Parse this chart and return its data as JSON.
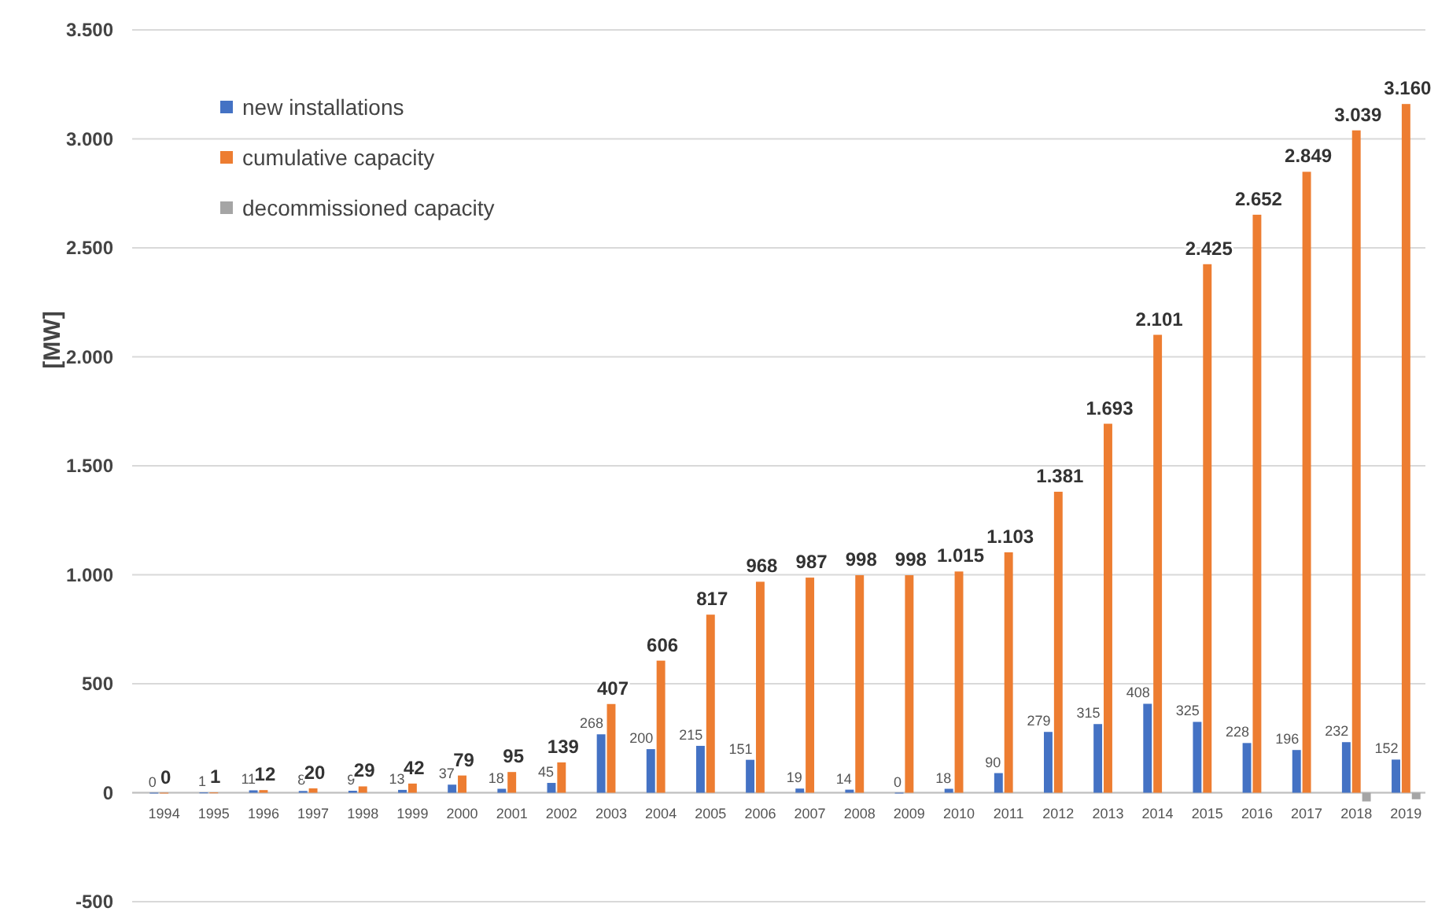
{
  "chart_data": {
    "type": "bar",
    "ylabel": "[MW]",
    "categories": [
      "1994",
      "1995",
      "1996",
      "1997",
      "1998",
      "1999",
      "2000",
      "2001",
      "2002",
      "2003",
      "2004",
      "2005",
      "2006",
      "2007",
      "2008",
      "2009",
      "2010",
      "2011",
      "2012",
      "2013",
      "2014",
      "2015",
      "2016",
      "2017",
      "2018",
      "2019"
    ],
    "series": [
      {
        "name": "new installations",
        "color": "#4472c4",
        "values": [
          0,
          1,
          11,
          8,
          9,
          13,
          37,
          18,
          45,
          268,
          200,
          215,
          151,
          19,
          14,
          0,
          18,
          90,
          279,
          315,
          408,
          325,
          228,
          196,
          232,
          152
        ],
        "value_labels": [
          "0",
          "1",
          "11",
          "8",
          "9",
          "13",
          "37",
          "18",
          "45",
          "268",
          "200",
          "215",
          "151",
          "19",
          "14",
          "0",
          "18",
          "90",
          "279",
          "315",
          "408",
          "325",
          "228",
          "196",
          "232",
          "152"
        ]
      },
      {
        "name": "cumulative capacity",
        "color": "#ed7d31",
        "values": [
          0,
          1,
          12,
          20,
          29,
          42,
          79,
          95,
          139,
          407,
          606,
          817,
          968,
          987,
          998,
          998,
          1015,
          1103,
          1381,
          1693,
          2101,
          2425,
          2652,
          2849,
          3039,
          3160
        ],
        "value_labels": [
          "0",
          "1",
          "12",
          "20",
          "29",
          "42",
          "79",
          "95",
          "139",
          "407",
          "606",
          "817",
          "968",
          "987",
          "998",
          "998",
          "1.015",
          "1.103",
          "1.381",
          "1.693",
          "2.101",
          "2.425",
          "2.652",
          "2.849",
          "3.039",
          "3.160"
        ]
      },
      {
        "name": "decommissioned capacity",
        "color": "#a5a5a5",
        "values": [
          null,
          null,
          null,
          null,
          null,
          null,
          null,
          null,
          null,
          null,
          null,
          null,
          null,
          null,
          null,
          null,
          null,
          null,
          null,
          null,
          null,
          null,
          null,
          null,
          -40,
          -30
        ]
      }
    ],
    "ylim": [
      -500,
      3500
    ],
    "yticks": [
      {
        "value": -500,
        "label": "-500"
      },
      0,
      500,
      {
        "value": 1000,
        "label": "1.000"
      },
      {
        "value": 1500,
        "label": "1.500"
      },
      {
        "value": 2000,
        "label": "2.000"
      },
      {
        "value": 2500,
        "label": "2.500"
      },
      {
        "value": 3000,
        "label": "3.000"
      },
      {
        "value": 3500,
        "label": "3.500"
      }
    ],
    "grid": "y",
    "legend": "top left"
  }
}
